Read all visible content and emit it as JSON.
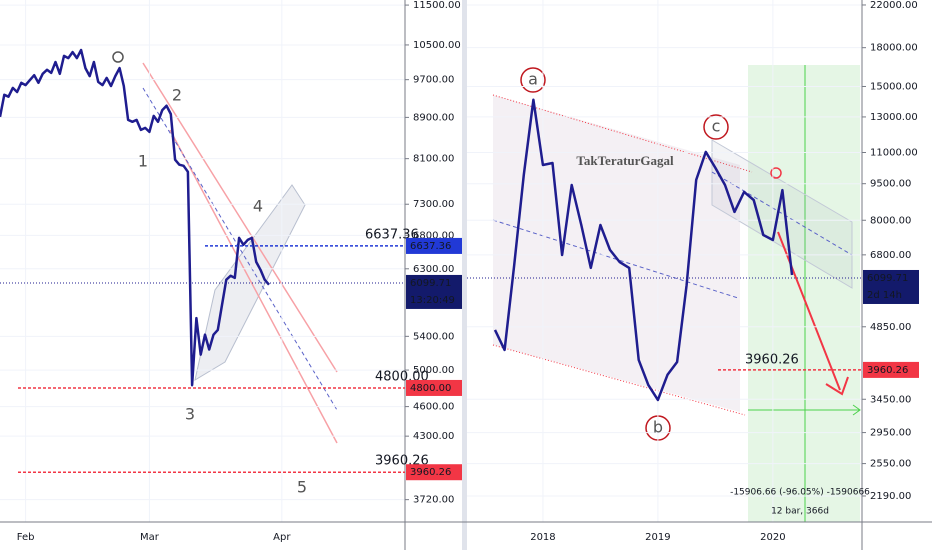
{
  "chart_data": [
    {
      "type": "line",
      "color": "#1f1d8f",
      "log_scale": true,
      "grid": true,
      "categories": [
        null,
        null,
        null,
        null,
        null,
        null,
        "Feb",
        null,
        null,
        null,
        null,
        null,
        null,
        null,
        null,
        null,
        null,
        null,
        null,
        null,
        null,
        null,
        null,
        null,
        null,
        null,
        null,
        null,
        null,
        null,
        null,
        null,
        null,
        null,
        null,
        "Mar",
        null,
        null,
        null,
        null,
        null,
        null,
        null,
        null,
        null,
        null,
        null,
        null,
        null,
        null,
        null,
        null,
        null,
        null,
        null,
        null,
        null,
        null,
        null,
        null,
        null,
        null,
        null,
        null,
        null,
        null,
        "Apr",
        null,
        null,
        null,
        null,
        null,
        null,
        null,
        null,
        null,
        null,
        null,
        null,
        null,
        null,
        null,
        null,
        null,
        null,
        null,
        null,
        null,
        null,
        null,
        null,
        null,
        null,
        null,
        null
      ],
      "values": [
        8910,
        9370,
        9330,
        9520,
        9430,
        9630,
        9580,
        9690,
        9800,
        9630,
        9830,
        9920,
        9850,
        10100,
        9830,
        10240,
        10190,
        10330,
        10190,
        10380,
        9960,
        9780,
        10100,
        9650,
        9580,
        9740,
        9560,
        9780,
        9960,
        9560,
        8850,
        8810,
        8850,
        8650,
        8690,
        8610,
        8930,
        8810,
        9050,
        9140,
        8970,
        8080,
        7990,
        7970,
        7860,
        4830,
        5630,
        5180,
        5420,
        5240,
        5420,
        5480,
        5800,
        6145,
        6200,
        6170,
        6760,
        6655,
        6730,
        6760,
        6400,
        6285,
        6145,
        6075,
        null,
        null,
        null,
        null,
        null,
        null,
        null,
        null,
        null,
        null,
        null,
        null,
        null,
        null,
        null,
        null,
        null,
        null,
        null,
        null,
        null,
        null,
        null,
        null,
        null,
        null,
        null,
        null,
        null,
        null,
        null
      ],
      "ylim": [
        3535,
        11634
      ],
      "yticks": [
        {
          "value": 11500,
          "label": "11500.00"
        },
        {
          "value": 10500,
          "label": "10500.00"
        },
        {
          "value": 9700,
          "label": "9700.00"
        },
        {
          "value": 8900,
          "label": "8900.00"
        },
        {
          "value": 8100,
          "label": "8100.00"
        },
        {
          "value": 7300,
          "label": "7300.00"
        },
        {
          "value": 6800,
          "label": "6800.00"
        },
        {
          "value": 6300,
          "label": "6300.00"
        },
        {
          "value": 5400,
          "label": "5400.00"
        },
        {
          "value": 5000,
          "label": "5000.00"
        },
        {
          "value": 4600,
          "label": "4600.00"
        },
        {
          "value": 4300,
          "label": "4300.00"
        },
        {
          "value": 3720,
          "label": "3720.00"
        }
      ],
      "levels": [
        {
          "value": 6637.36,
          "color": "#2139d6",
          "text_color": "#6a3fbf"
        },
        {
          "value": 4800,
          "label": "4800.00",
          "color": "#f23645",
          "text_color": "#f23645"
        },
        {
          "value": 3960.26,
          "color": "#f23645",
          "text_color": "#f23645"
        }
      ],
      "last_price": 6099.71,
      "countdown": "13:20:49",
      "annotations": [
        "1",
        "2",
        "3",
        "4",
        "5"
      ]
    },
    {
      "type": "line",
      "color": "#1f1d8f",
      "log_scale": true,
      "grid": true,
      "categories": [
        null,
        null,
        null,
        null,
        null,
        null,
        null,
        null,
        "2018",
        null,
        null,
        null,
        null,
        null,
        null,
        null,
        null,
        null,
        null,
        null,
        "2019",
        null,
        null,
        null,
        null,
        null,
        null,
        null,
        null,
        null,
        null,
        null,
        "2020",
        null,
        null,
        null,
        null,
        null,
        null,
        null,
        null,
        null
      ],
      "values": [
        null,
        null,
        null,
        4780,
        4350,
        6480,
        9900,
        14090,
        10370,
        10470,
        6795,
        9440,
        7825,
        6395,
        7825,
        6960,
        6575,
        6395,
        4150,
        3690,
        3440,
        3870,
        4110,
        5900,
        9670,
        11030,
        10230,
        9440,
        8320,
        9140,
        8800,
        7465,
        7290,
        9220,
        6185,
        null,
        null,
        null,
        null,
        null,
        null,
        null
      ],
      "ylim": [
        1938,
        22520
      ],
      "yticks": [
        {
          "value": 22000,
          "label": "22000.00"
        },
        {
          "value": 18000,
          "label": "18000.00"
        },
        {
          "value": 15000,
          "label": "15000.00"
        },
        {
          "value": 13000,
          "label": "13000.00"
        },
        {
          "value": 11000,
          "label": "11000.00"
        },
        {
          "value": 9500,
          "label": "9500.00"
        },
        {
          "value": 8000,
          "label": "8000.00"
        },
        {
          "value": 6800,
          "label": "6800.00"
        },
        {
          "value": 4850,
          "label": "4850.00"
        },
        {
          "value": 3450,
          "label": "3450.00"
        },
        {
          "value": 2950,
          "label": "2950.00"
        },
        {
          "value": 2550,
          "label": "2550.00"
        },
        {
          "value": 2190,
          "label": "2190.00"
        }
      ],
      "levels": [
        {
          "value": 3960.26,
          "color": "#f23645",
          "text_color": "#f23645"
        }
      ],
      "last_price": 6099.71,
      "countdown": "2d 14h",
      "annotations": [
        "a",
        "b",
        "c",
        "TakTeraturGagal"
      ],
      "measure": [
        "-15906.66 (-96.05%) -1590666",
        "12 bar, 366d"
      ]
    }
  ]
}
